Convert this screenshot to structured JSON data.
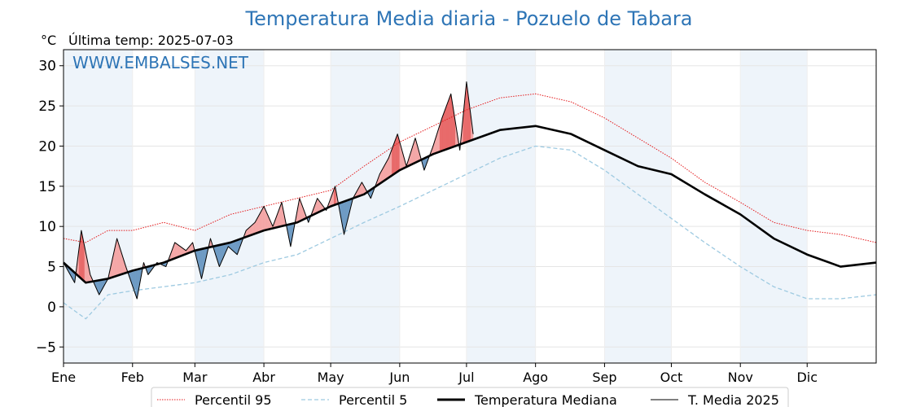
{
  "chart_data": {
    "type": "line",
    "title": "Temperatura Media diaria - Pozuelo de Tabara",
    "unit": "°C",
    "last_temp_label": "Última temp: 2025-07-03",
    "watermark": "WWW.EMBALSES.NET",
    "xlabel": "",
    "ylabel": "",
    "ylim": [
      -7,
      32
    ],
    "y_ticks": [
      -5,
      0,
      5,
      10,
      15,
      20,
      25,
      30
    ],
    "y_tick_labels": [
      "−5",
      "0",
      "5",
      "10",
      "15",
      "20",
      "25",
      "30"
    ],
    "x_range_days": [
      0,
      365
    ],
    "months": [
      {
        "label": "Ene",
        "day": 0
      },
      {
        "label": "Feb",
        "day": 31
      },
      {
        "label": "Mar",
        "day": 59
      },
      {
        "label": "Abr",
        "day": 90
      },
      {
        "label": "May",
        "day": 120
      },
      {
        "label": "Jun",
        "day": 151
      },
      {
        "label": "Jul",
        "day": 181
      },
      {
        "label": "Ago",
        "day": 212
      },
      {
        "label": "Sep",
        "day": 243
      },
      {
        "label": "Oct",
        "day": 273
      },
      {
        "label": "Nov",
        "day": 304
      },
      {
        "label": "Dic",
        "day": 334
      }
    ],
    "grid": true,
    "legend_position": "bottom",
    "colors": {
      "p95": "#e41a1c",
      "p5": "#9ecae1",
      "median": "#000000",
      "current": "#000000",
      "above_fill": "#f4a7a7",
      "above_strong_fill": "#e86a6a",
      "below_fill": "#6e9bc4",
      "band": "#eef4fa"
    },
    "series": [
      {
        "name": "Percentil 95",
        "style": "dotted",
        "x": [
          0,
          10,
          20,
          31,
          45,
          59,
          75,
          90,
          105,
          120,
          135,
          151,
          166,
          181,
          196,
          212,
          228,
          243,
          258,
          273,
          288,
          304,
          319,
          334,
          349,
          365
        ],
        "values": [
          8.5,
          8.0,
          9.5,
          9.5,
          10.5,
          9.5,
          11.5,
          12.5,
          13.5,
          14.5,
          17.5,
          20.5,
          22.5,
          24.5,
          26.0,
          26.5,
          25.5,
          23.5,
          21.0,
          18.5,
          15.5,
          13.0,
          10.5,
          9.5,
          9.0,
          8.0
        ]
      },
      {
        "name": "Percentil 5",
        "style": "dashed",
        "x": [
          0,
          10,
          20,
          31,
          45,
          59,
          75,
          90,
          105,
          120,
          135,
          151,
          166,
          181,
          196,
          212,
          228,
          243,
          258,
          273,
          288,
          304,
          319,
          334,
          349,
          365
        ],
        "values": [
          0.5,
          -1.5,
          1.5,
          2.0,
          2.5,
          3.0,
          4.0,
          5.5,
          6.5,
          8.5,
          10.5,
          12.5,
          14.5,
          16.5,
          18.5,
          20.0,
          19.5,
          17.0,
          14.0,
          11.0,
          8.0,
          5.0,
          2.5,
          1.0,
          1.0,
          1.5
        ]
      },
      {
        "name": "Temperatura Mediana",
        "style": "bold",
        "x": [
          0,
          10,
          20,
          31,
          45,
          59,
          75,
          90,
          105,
          120,
          135,
          151,
          166,
          181,
          196,
          212,
          228,
          243,
          258,
          273,
          288,
          304,
          319,
          334,
          349,
          365
        ],
        "values": [
          5.5,
          3.0,
          3.5,
          4.5,
          5.5,
          7.0,
          8.0,
          9.5,
          10.5,
          12.5,
          14.0,
          17.0,
          19.0,
          20.5,
          22.0,
          22.5,
          21.5,
          19.5,
          17.5,
          16.5,
          14.0,
          11.5,
          8.5,
          6.5,
          5.0,
          5.5
        ]
      },
      {
        "name": "T. Media 2025",
        "style": "thin",
        "x": [
          0,
          5,
          8,
          12,
          16,
          20,
          24,
          28,
          33,
          36,
          38,
          42,
          46,
          50,
          55,
          58,
          62,
          66,
          70,
          74,
          78,
          82,
          86,
          90,
          94,
          98,
          102,
          106,
          110,
          114,
          118,
          122,
          126,
          130,
          134,
          138,
          142,
          146,
          150,
          154,
          158,
          162,
          166,
          170,
          174,
          178,
          181,
          184
        ],
        "values": [
          5.5,
          3.0,
          9.5,
          4.0,
          1.5,
          3.5,
          8.5,
          5.0,
          1.0,
          5.5,
          4.0,
          5.5,
          5.0,
          8.0,
          7.0,
          8.0,
          3.5,
          8.5,
          5.0,
          7.5,
          6.5,
          9.5,
          10.5,
          12.5,
          10.0,
          13.0,
          7.5,
          13.5,
          10.5,
          13.5,
          12.0,
          15.0,
          9.0,
          13.5,
          15.5,
          13.5,
          16.5,
          18.5,
          21.5,
          17.5,
          21.0,
          17.0,
          20.0,
          23.5,
          26.5,
          19.5,
          28.0,
          21.5
        ]
      }
    ]
  },
  "legend": {
    "p95": "Percentil 95",
    "p5": "Percentil 5",
    "median": "Temperatura Mediana",
    "current": "T. Media 2025"
  }
}
